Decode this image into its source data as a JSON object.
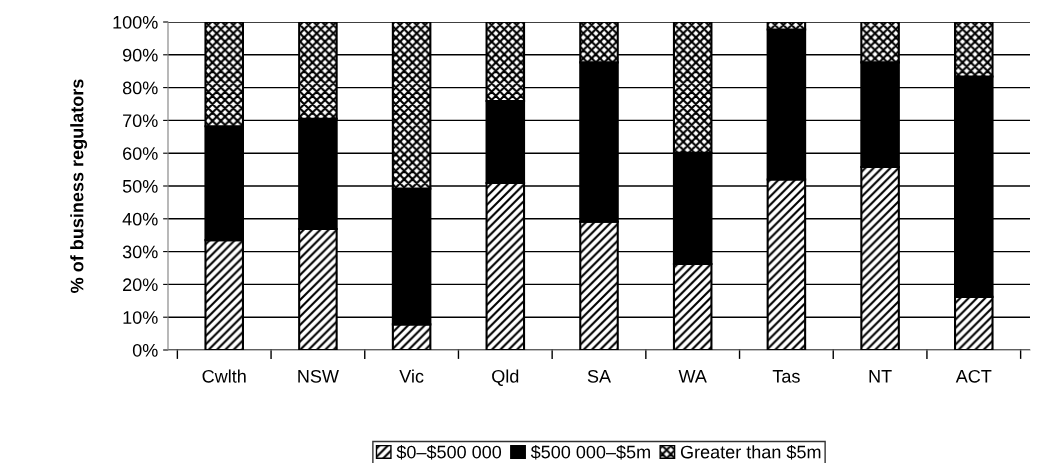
{
  "chart_data": {
    "type": "bar",
    "stacked": true,
    "ylabel": "% of business regulators",
    "categories": [
      "Cwlth",
      "NSW",
      "Vic",
      "Qld",
      "SA",
      "WA",
      "Tas",
      "NT",
      "ACT"
    ],
    "series": [
      {
        "name": "$0–$500 000",
        "color": "#000000",
        "values": [
          33.5,
          36.9,
          7.8,
          50.9,
          39.1,
          26.2,
          52.0,
          55.8,
          16.2
        ]
      },
      {
        "name": "$500 000–$5m",
        "color": "#000000",
        "values": [
          34.7,
          33.6,
          41.4,
          25.0,
          48.6,
          33.9,
          45.7,
          31.9,
          67.2
        ]
      },
      {
        "name": "Greater than $5m",
        "color": "#000000",
        "values": [
          31.8,
          29.5,
          50.8,
          24.1,
          12.3,
          39.9,
          2.3,
          12.3,
          16.6
        ]
      }
    ],
    "ylim": [
      0,
      100
    ],
    "yticks": [
      {
        "value": 0,
        "label": "0%"
      },
      {
        "value": 10,
        "label": "10%"
      },
      {
        "value": 20,
        "label": "20%"
      },
      {
        "value": 30,
        "label": "30%"
      },
      {
        "value": 40,
        "label": "40%"
      },
      {
        "value": 50,
        "label": "50%"
      },
      {
        "value": 60,
        "label": "60%"
      },
      {
        "value": 70,
        "label": "70%"
      },
      {
        "value": 80,
        "label": "80%"
      },
      {
        "value": 90,
        "label": "90%"
      },
      {
        "value": 100,
        "label": "100%"
      }
    ],
    "grid": "y",
    "legend": "bottom"
  }
}
